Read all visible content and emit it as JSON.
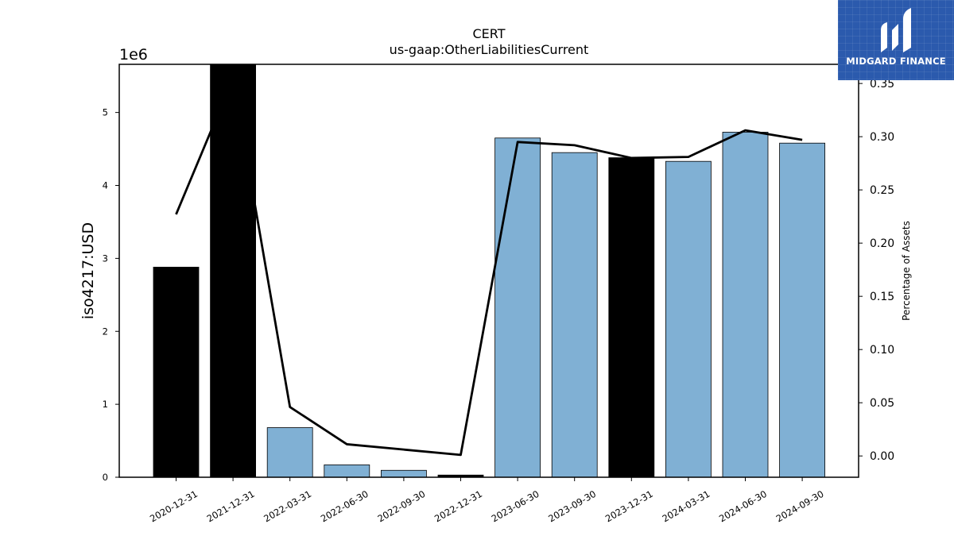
{
  "chart_data": {
    "type": "bar",
    "title": "CERT",
    "subtitle": "us-gaap:OtherLiabilitiesCurrent",
    "ylabel": "iso4217:USD",
    "y_offset_label": "1e6",
    "y2label": "Percentage of Assets",
    "categories": [
      "2020-12-31",
      "2021-12-31",
      "2022-03-31",
      "2022-06-30",
      "2022-09-30",
      "2022-12-31",
      "2023-06-30",
      "2023-09-30",
      "2023-12-31",
      "2024-03-31",
      "2024-06-30",
      "2024-09-30"
    ],
    "series": [
      {
        "values": [
          2880000,
          5660000,
          680000,
          170000,
          95000,
          30000,
          4650000,
          4450000,
          4380000,
          4330000,
          4730000,
          4580000
        ]
      },
      {
        "axis": "right",
        "type": "line",
        "values": [
          0.227,
          0.355,
          0.046,
          0.011,
          null,
          0.001,
          0.295,
          0.292,
          0.28,
          0.281,
          0.306,
          0.297
        ]
      }
    ],
    "bar_colors": [
      "#000000",
      "#000000",
      "#80b0d4",
      "#80b0d4",
      "#80b0d4",
      "#000000",
      "#80b0d4",
      "#80b0d4",
      "#000000",
      "#80b0d4",
      "#80b0d4",
      "#80b0d4"
    ],
    "line_color": "#000000",
    "ylim": [
      0,
      5660000
    ],
    "yticks": [
      0,
      1,
      2,
      3,
      4,
      5
    ],
    "y2lim": [
      -0.02,
      0.368
    ],
    "y2ticks": [
      "0.00",
      "0.05",
      "0.10",
      "0.15",
      "0.20",
      "0.25",
      "0.30",
      "0.35"
    ],
    "grid": false
  },
  "logo": {
    "text": "MIDGARD FINANCE",
    "background": "#2b5aad",
    "icon": "midgard-m-icon"
  }
}
